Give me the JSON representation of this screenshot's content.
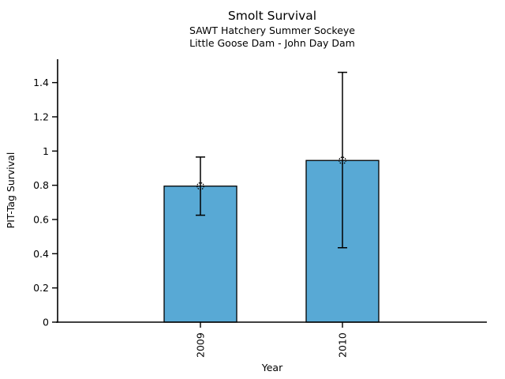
{
  "figure": {
    "background": "#ffffff",
    "text_color": "#000000"
  },
  "chart_data": {
    "type": "bar",
    "title": "Smolt Survival",
    "subtitle1": "SAWT Hatchery Summer Sockeye",
    "subtitle2": "Little Goose Dam - John Day Dam",
    "xlabel": "Year",
    "ylabel": "PIT-Tag Survival",
    "categories": [
      "2009",
      "2010"
    ],
    "values": [
      0.795,
      0.945
    ],
    "error_low": [
      0.625,
      0.435
    ],
    "error_high": [
      0.965,
      1.46
    ],
    "yticks": [
      0,
      0.2,
      0.4,
      0.6,
      0.8,
      1,
      1.2,
      1.4
    ],
    "ytick_labels": [
      "0",
      "0.2",
      "0.4",
      "0.6",
      "0.8",
      "1",
      "1.2",
      "1.4"
    ],
    "ylim": [
      0,
      1.54
    ],
    "grid": false,
    "legend": null,
    "marker": "open-circle-dotted",
    "bar_color": "#58a9d5",
    "bar_edge_color": "#000000",
    "axis_color": "#000000",
    "error_bar_color": "#000000"
  }
}
